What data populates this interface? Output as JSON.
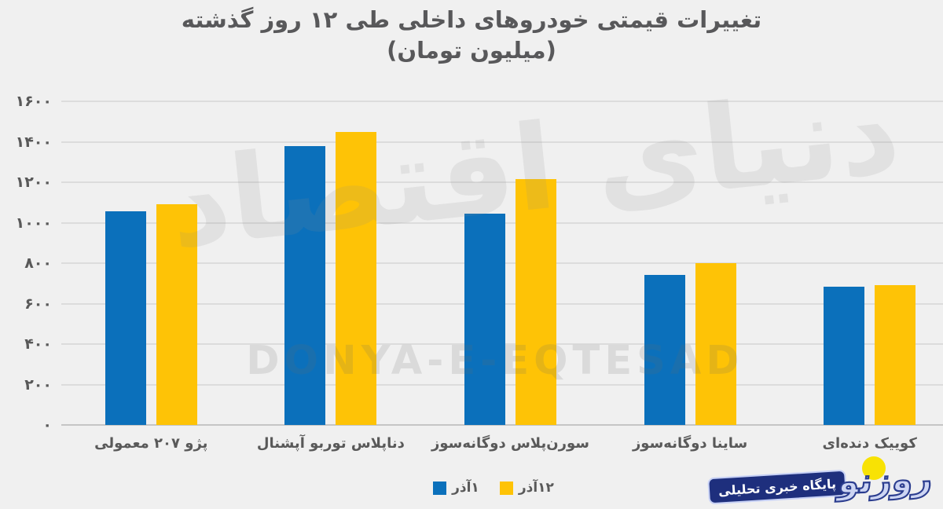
{
  "title": {
    "line1": "تغییرات قیمتی خودروهای داخلی طی ۱۲ روز گذشته",
    "line2": "(میلیون تومان)"
  },
  "chart_data": {
    "type": "bar",
    "categories": [
      "پژو ۲۰۷ معمولی",
      "دناپلاس توربو آپشنال",
      "سورن‌پلاس دوگانه‌سوز",
      "ساینا دوگانه‌سوز",
      "کوییک دنده‌ای"
    ],
    "series": [
      {
        "name": "۱آذر",
        "color": "#0b70bb",
        "values": [
          1055,
          1380,
          1045,
          740,
          685
        ]
      },
      {
        "name": "۱۲آذر",
        "color": "#fec306",
        "values": [
          1090,
          1450,
          1215,
          800,
          690
        ]
      }
    ],
    "unit": "میلیون تومان",
    "ylim": [
      0,
      1600
    ],
    "yticks": [
      {
        "value": 0,
        "label": "۰"
      },
      {
        "value": 200,
        "label": "۲۰۰"
      },
      {
        "value": 400,
        "label": "۴۰۰"
      },
      {
        "value": 600,
        "label": "۶۰۰"
      },
      {
        "value": 800,
        "label": "۸۰۰"
      },
      {
        "value": 1000,
        "label": "۱۰۰۰"
      },
      {
        "value": 1200,
        "label": "۱۲۰۰"
      },
      {
        "value": 1400,
        "label": "۱۴۰۰"
      },
      {
        "value": 1600,
        "label": "۱۶۰۰"
      }
    ],
    "grid": true,
    "legend_position": "bottom-center"
  },
  "watermark": {
    "persian_calligraphy": "دنیای اقتصاد",
    "latin": "DONYA-E-EQTESAD"
  },
  "logo": {
    "brand": "روزنو",
    "tagline": "پایگاه خبری تحلیلی",
    "sun_color": "#f8e204",
    "brand_fill": "#cdd5f3",
    "brand_outline": "#2b3d8f",
    "ribbon_bg": "#1e2f7d",
    "ribbon_border": "#c6d0f5",
    "ribbon_text_color": "#ffffff"
  },
  "colors": {
    "background": "#f0f0f0",
    "gridline": "#dcdcdc",
    "zero_line": "#c5c5c5",
    "text": "#595959"
  }
}
